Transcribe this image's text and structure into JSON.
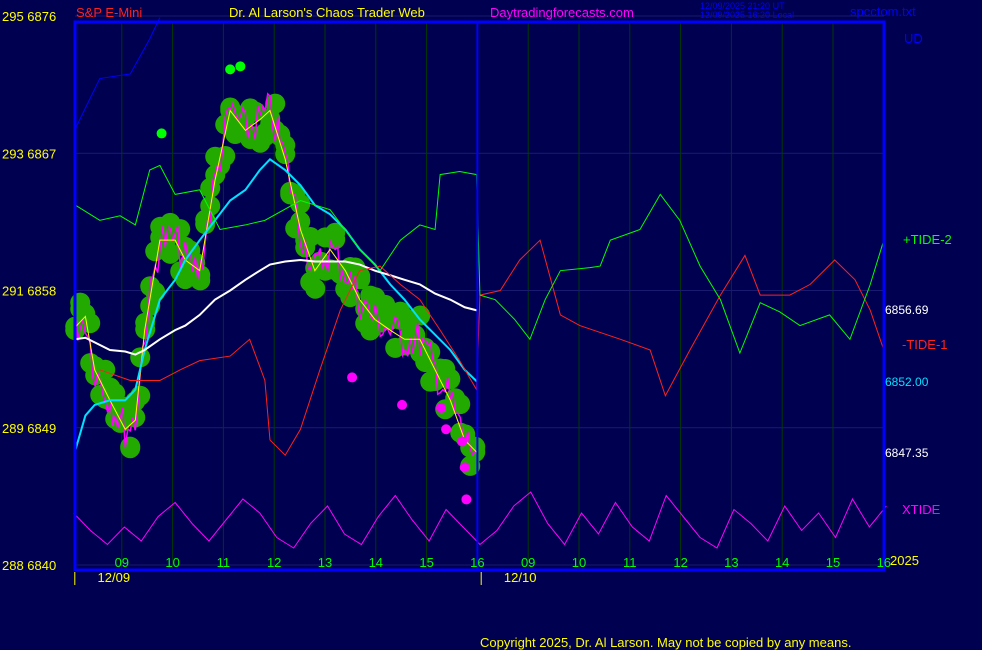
{
  "header": {
    "symbol": "S&P E-Mini",
    "title": "Dr. Al Larson's Chaos Trader Web",
    "site": "Daytradingforecasts.com",
    "time_ut": "12/09/2025 21:20 UT",
    "time_local": "12/09/2025 16:20 Local",
    "file": "spcctom.txt"
  },
  "footer": {
    "copyright": "Copyright 2025, Dr. Al Larson. May not be copied by any means."
  },
  "colors": {
    "background": "#000050",
    "frame": "#0000ff",
    "price": "#ffff00",
    "fast_ma": "#00e0ff",
    "slow_ma": "#ffffff",
    "bars": "#ff00ff",
    "glow": "#22aa00",
    "tide1": "#ff2020",
    "tide2": "#00ff00",
    "xtide": "#ff00ff",
    "ud": "#0000ff"
  },
  "chart_data": {
    "type": "line",
    "title": "Dr. Al Larson's Chaos Trader Web",
    "ylim": [
      6840,
      6877
    ],
    "y_ticks": [
      {
        "left": "295",
        "right": "6876",
        "value": 6876
      },
      {
        "left": "293",
        "right": "6867",
        "value": 6867
      },
      {
        "left": "291",
        "right": "6858",
        "value": 6858
      },
      {
        "left": "289",
        "right": "6849",
        "value": 6849
      },
      {
        "left": "288",
        "right": "6840",
        "value": 6840
      }
    ],
    "x_ticks": [
      {
        "label": "09",
        "time": "12/09 09:00"
      },
      {
        "label": "10",
        "time": "12/09 10:00"
      },
      {
        "label": "11",
        "time": "12/09 11:00"
      },
      {
        "label": "12",
        "time": "12/09 12:00"
      },
      {
        "label": "13",
        "time": "12/09 13:00"
      },
      {
        "label": "14",
        "time": "12/09 14:00"
      },
      {
        "label": "15",
        "time": "12/09 15:00"
      },
      {
        "label": "16",
        "time": "12/09 16:00"
      },
      {
        "label": "09",
        "time": "12/10 09:00"
      },
      {
        "label": "10",
        "time": "12/10 10:00"
      },
      {
        "label": "11",
        "time": "12/10 11:00"
      },
      {
        "label": "12",
        "time": "12/10 12:00"
      },
      {
        "label": "13",
        "time": "12/10 13:00"
      },
      {
        "label": "14",
        "time": "12/10 14:00"
      },
      {
        "label": "15",
        "time": "12/10 15:00"
      },
      {
        "label": "16",
        "time": "12/10 16:00"
      }
    ],
    "date_labels": [
      {
        "label": "12/09",
        "time": "12/09 09:00"
      },
      {
        "label": "12/10",
        "time": "12/10 09:00"
      }
    ],
    "year_label": "2025",
    "grid": true,
    "series": [
      {
        "name": "",
        "key": "price",
        "color": "#ffff00",
        "last_label": "6847.35",
        "points": [
          [
            "12/09 08:05",
            6855.6
          ],
          [
            "12/09 08:17",
            6856.3
          ],
          [
            "12/09 08:28",
            6852.8
          ],
          [
            "12/09 08:46",
            6850.8
          ],
          [
            "12/09 09:04",
            6848.9
          ],
          [
            "12/09 09:16",
            6849.5
          ],
          [
            "12/09 09:27",
            6855.4
          ],
          [
            "12/09 09:45",
            6861.3
          ],
          [
            "12/09 10:03",
            6861.3
          ],
          [
            "12/09 10:15",
            6860.0
          ],
          [
            "12/09 10:32",
            6859.3
          ],
          [
            "12/09 10:50",
            6865.2
          ],
          [
            "12/09 11:08",
            6869.8
          ],
          [
            "12/09 11:26",
            6868.5
          ],
          [
            "12/09 11:43",
            6869.2
          ],
          [
            "12/09 11:55",
            6869.8
          ],
          [
            "12/09 12:13",
            6866.6
          ],
          [
            "12/09 12:31",
            6862.0
          ],
          [
            "12/09 12:48",
            6859.3
          ],
          [
            "12/09 13:06",
            6860.7
          ],
          [
            "12/09 13:24",
            6859.3
          ],
          [
            "12/09 13:41",
            6857.4
          ],
          [
            "12/09 13:59",
            6856.1
          ],
          [
            "12/09 14:17",
            6855.4
          ],
          [
            "12/09 14:34",
            6854.8
          ],
          [
            "12/09 14:52",
            6854.8
          ],
          [
            "12/09 15:10",
            6852.8
          ],
          [
            "12/09 15:28",
            6850.8
          ],
          [
            "12/09 15:45",
            6848.2
          ],
          [
            "12/09 16:00",
            6847.35
          ]
        ]
      },
      {
        "name": "",
        "key": "fast_ma",
        "color": "#00e0ff",
        "last_label": "6852.00",
        "points": [
          [
            "12/09 08:05",
            6847.5
          ],
          [
            "12/09 08:17",
            6849.8
          ],
          [
            "12/09 08:28",
            6850.5
          ],
          [
            "12/09 08:46",
            6850.8
          ],
          [
            "12/09 09:04",
            6850.8
          ],
          [
            "12/09 09:16",
            6851.5
          ],
          [
            "12/09 09:27",
            6854.1
          ],
          [
            "12/09 09:45",
            6857.4
          ],
          [
            "12/09 10:03",
            6858.7
          ],
          [
            "12/09 10:15",
            6860.0
          ],
          [
            "12/09 10:32",
            6861.3
          ],
          [
            "12/09 10:50",
            6862.6
          ],
          [
            "12/09 11:08",
            6863.9
          ],
          [
            "12/09 11:26",
            6864.6
          ],
          [
            "12/09 11:43",
            6865.9
          ],
          [
            "12/09 11:55",
            6866.6
          ],
          [
            "12/09 12:13",
            6865.9
          ],
          [
            "12/09 12:31",
            6864.9
          ],
          [
            "12/09 12:48",
            6863.6
          ],
          [
            "12/09 13:06",
            6863.0
          ],
          [
            "12/09 13:24",
            6862.0
          ],
          [
            "12/09 13:41",
            6860.7
          ],
          [
            "12/09 13:59",
            6859.7
          ],
          [
            "12/09 14:17",
            6858.4
          ],
          [
            "12/09 14:34",
            6857.4
          ],
          [
            "12/09 14:52",
            6856.1
          ],
          [
            "12/09 15:10",
            6855.1
          ],
          [
            "12/09 15:28",
            6854.1
          ],
          [
            "12/09 15:45",
            6852.8
          ],
          [
            "12/09 16:00",
            6852.0
          ]
        ]
      },
      {
        "name": "",
        "key": "slow_ma",
        "color": "#ffffff",
        "last_label": "6856.69",
        "points": [
          [
            "12/09 08:05",
            6854.8
          ],
          [
            "12/09 08:17",
            6854.9
          ],
          [
            "12/09 08:28",
            6854.6
          ],
          [
            "12/09 08:46",
            6854.1
          ],
          [
            "12/09 09:04",
            6854.0
          ],
          [
            "12/09 09:16",
            6853.8
          ],
          [
            "12/09 09:27",
            6854.1
          ],
          [
            "12/09 09:45",
            6854.8
          ],
          [
            "12/09 10:03",
            6855.4
          ],
          [
            "12/09 10:15",
            6855.7
          ],
          [
            "12/09 10:32",
            6856.4
          ],
          [
            "12/09 10:50",
            6857.4
          ],
          [
            "12/09 11:08",
            6858.0
          ],
          [
            "12/09 11:26",
            6858.7
          ],
          [
            "12/09 11:43",
            6859.3
          ],
          [
            "12/09 11:55",
            6859.7
          ],
          [
            "12/09 12:13",
            6859.9
          ],
          [
            "12/09 12:31",
            6860.0
          ],
          [
            "12/09 12:48",
            6859.9
          ],
          [
            "12/09 13:06",
            6859.9
          ],
          [
            "12/09 13:24",
            6859.9
          ],
          [
            "12/09 13:41",
            6859.7
          ],
          [
            "12/09 13:59",
            6859.3
          ],
          [
            "12/09 14:17",
            6859.0
          ],
          [
            "12/09 14:34",
            6858.7
          ],
          [
            "12/09 14:52",
            6858.4
          ],
          [
            "12/09 15:10",
            6857.8
          ],
          [
            "12/09 15:28",
            6857.4
          ],
          [
            "12/09 15:45",
            6856.9
          ],
          [
            "12/09 16:00",
            6856.69
          ]
        ]
      },
      {
        "name": "-TIDE-1",
        "key": "tide1",
        "color": "#ff2020",
        "points": [
          [
            "12/09 08:34",
            6852.8
          ],
          [
            "12/09 09:10",
            6852.1
          ],
          [
            "12/09 09:45",
            6852.1
          ],
          [
            "12/09 10:09",
            6852.8
          ],
          [
            "12/09 10:32",
            6853.4
          ],
          [
            "12/09 11:08",
            6853.7
          ],
          [
            "12/09 11:31",
            6854.8
          ],
          [
            "12/09 11:49",
            6852.1
          ],
          [
            "12/09 11:55",
            6848.2
          ],
          [
            "12/09 12:13",
            6847.2
          ],
          [
            "12/09 12:31",
            6848.9
          ],
          [
            "12/09 12:54",
            6852.8
          ],
          [
            "12/09 13:18",
            6856.7
          ],
          [
            "12/09 13:41",
            6859.3
          ],
          [
            "12/09 14:05",
            6859.6
          ],
          [
            "12/09 14:29",
            6858.4
          ],
          [
            "12/09 14:52",
            6857.4
          ],
          [
            "12/09 15:16",
            6855.4
          ],
          [
            "12/09 15:39",
            6853.4
          ],
          [
            "12/09 15:59",
            6851.5
          ],
          [
            "12/10 08:03",
            6857.7
          ],
          [
            "12/10 08:27",
            6858.0
          ],
          [
            "12/10 08:50",
            6860.0
          ],
          [
            "12/10 09:14",
            6861.3
          ],
          [
            "12/10 09:38",
            6856.4
          ],
          [
            "12/10 10:01",
            6855.7
          ],
          [
            "12/10 10:49",
            6854.8
          ],
          [
            "12/10 11:24",
            6854.1
          ],
          [
            "12/10 11:42",
            6851.1
          ],
          [
            "12/10 12:11",
            6854.1
          ],
          [
            "12/10 12:47",
            6857.7
          ],
          [
            "12/10 13:16",
            6860.3
          ],
          [
            "12/10 13:34",
            6857.7
          ],
          [
            "12/10 14:09",
            6857.7
          ],
          [
            "12/10 14:33",
            6858.4
          ],
          [
            "12/10 15:02",
            6860.0
          ],
          [
            "12/10 15:26",
            6858.7
          ],
          [
            "12/10 15:44",
            6856.7
          ],
          [
            "12/10 16:00",
            6854.1
          ]
        ]
      },
      {
        "name": "+TIDE-2",
        "key": "tide2",
        "color": "#00ff00",
        "points": [
          [
            "12/09 08:05",
            6863.6
          ],
          [
            "12/09 08:34",
            6862.6
          ],
          [
            "12/09 08:58",
            6862.9
          ],
          [
            "12/09 09:16",
            6862.3
          ],
          [
            "12/09 09:33",
            6865.9
          ],
          [
            "12/09 09:45",
            6866.2
          ],
          [
            "12/09 10:03",
            6864.3
          ],
          [
            "12/09 10:32",
            6864.6
          ],
          [
            "12/09 10:56",
            6862.0
          ],
          [
            "12/09 11:26",
            6862.3
          ],
          [
            "12/09 11:49",
            6862.6
          ],
          [
            "12/09 12:31",
            6863.9
          ],
          [
            "12/09 13:06",
            6863.3
          ],
          [
            "12/09 13:41",
            6860.7
          ],
          [
            "12/09 14:05",
            6859.3
          ],
          [
            "12/09 14:29",
            6861.3
          ],
          [
            "12/09 14:52",
            6862.3
          ],
          [
            "12/09 15:10",
            6862.0
          ],
          [
            "12/09 15:16",
            6865.6
          ],
          [
            "12/09 15:39",
            6865.8
          ],
          [
            "12/09 15:59",
            6865.6
          ],
          [
            "12/10 08:03",
            6857.7
          ],
          [
            "12/10 08:21",
            6857.4
          ],
          [
            "12/10 08:44",
            6856.1
          ],
          [
            "12/10 09:02",
            6854.8
          ],
          [
            "12/10 09:20",
            6857.4
          ],
          [
            "12/10 09:38",
            6859.3
          ],
          [
            "12/10 10:13",
            6859.5
          ],
          [
            "12/10 10:25",
            6859.6
          ],
          [
            "12/10 10:37",
            6861.3
          ],
          [
            "12/10 11:12",
            6862.0
          ],
          [
            "12/10 11:36",
            6864.3
          ],
          [
            "12/10 11:59",
            6862.6
          ],
          [
            "12/10 12:23",
            6859.6
          ],
          [
            "12/10 12:47",
            6857.4
          ],
          [
            "12/10 13:10",
            6853.9
          ],
          [
            "12/10 13:34",
            6857.2
          ],
          [
            "12/10 13:57",
            6856.6
          ],
          [
            "12/10 14:21",
            6855.7
          ],
          [
            "12/10 14:56",
            6856.4
          ],
          [
            "12/10 15:20",
            6854.8
          ],
          [
            "12/10 15:44",
            6858.4
          ],
          [
            "12/10 16:00",
            6861.3
          ]
        ]
      },
      {
        "name": "UD",
        "key": "ud",
        "color": "#0000ff",
        "points": [
          [
            "12/09 08:05",
            6868.6
          ],
          [
            "12/09 08:34",
            6871.9
          ],
          [
            "12/09 09:10",
            6872.2
          ],
          [
            "12/09 09:33",
            6874.5
          ],
          [
            "12/09 09:45",
            6875.9
          ]
        ]
      }
    ],
    "xtide": {
      "name": "XTIDE",
      "color": "#ff00ff",
      "values_every_20min": [
        60,
        35,
        15,
        40,
        20,
        55,
        75,
        45,
        20,
        50,
        80,
        60,
        25,
        10,
        45,
        70,
        30,
        15,
        55,
        85,
        50,
        20,
        65,
        40,
        15,
        35,
        70,
        90,
        45,
        15,
        60,
        30,
        75,
        40,
        20,
        85,
        55,
        25,
        10,
        65,
        45,
        20,
        70,
        35,
        60,
        25,
        80,
        40,
        70
      ]
    },
    "low_markers": {
      "color": "#ff00ff",
      "points": [
        [
          "12/09 13:32",
          6852.3
        ],
        [
          "12/09 14:31",
          6850.5
        ],
        [
          "12/09 15:17",
          6850.3
        ],
        [
          "12/09 15:23",
          6848.9
        ],
        [
          "12/09 15:42",
          6848.1
        ],
        [
          "12/09 15:45",
          6846.4
        ],
        [
          "12/09 15:47",
          6844.3
        ]
      ]
    },
    "high_markers": {
      "color": "#00ff00",
      "points": [
        [
          "12/09 09:47",
          6868.3
        ],
        [
          "12/09 11:08",
          6872.5
        ],
        [
          "12/09 11:20",
          6872.7
        ]
      ]
    }
  }
}
